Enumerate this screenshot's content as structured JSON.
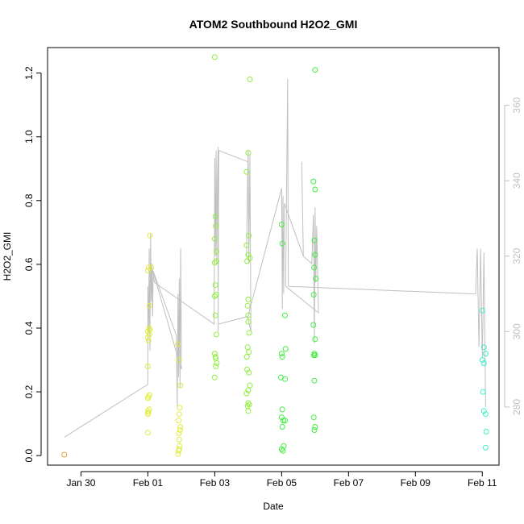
{
  "chart_data": {
    "type": "scatter",
    "title": "ATOM2 Southbound H2O2_GMI",
    "xlabel": "Date",
    "ylabel": "H2O2_GMI",
    "x_ticks": [
      {
        "day": 29.5,
        "label": "Jan 30"
      },
      {
        "day": 31.5,
        "label": "Feb 01"
      },
      {
        "day": 33.5,
        "label": "Feb 03"
      },
      {
        "day": 35.5,
        "label": "Feb 05"
      },
      {
        "day": 37.5,
        "label": "Feb 07"
      },
      {
        "day": 39.5,
        "label": "Feb 09"
      },
      {
        "day": 41.5,
        "label": "Feb 11"
      }
    ],
    "x_tick_note": "day = days after Jan 0 (Jan 30 00:00 = 29.5 in this scale offset by 0.5 so labels sit at midnight)",
    "xlim": [
      28.5,
      42.0
    ],
    "ylim": [
      -0.03,
      1.28
    ],
    "y_ticks": [
      "0.0",
      "0.2",
      "0.4",
      "0.6",
      "0.8",
      "1.0",
      "1.2"
    ],
    "y_tick_values": [
      0.0,
      0.2,
      0.4,
      0.6,
      0.8,
      1.0,
      1.2
    ],
    "y2_ticks": [
      "280",
      "300",
      "320",
      "340",
      "360"
    ],
    "y2_tick_values": [
      280,
      300,
      320,
      340,
      360
    ],
    "y2lim": [
      264.6,
      375.3
    ],
    "grid": false,
    "secondary_line_color": "#c0c0c0",
    "series": [
      {
        "color": "#e8a040",
        "points": [
          [
            29.0,
            0.003
          ]
        ]
      },
      {
        "color": "#e0ec3c",
        "points": [
          [
            31.5,
            0.072
          ],
          [
            31.5,
            0.13
          ],
          [
            31.5,
            0.14
          ],
          [
            31.52,
            0.135
          ],
          [
            31.54,
            0.145
          ],
          [
            31.5,
            0.18
          ],
          [
            31.52,
            0.185
          ],
          [
            31.55,
            0.19
          ],
          [
            31.5,
            0.28
          ],
          [
            31.52,
            0.36
          ],
          [
            31.5,
            0.37
          ],
          [
            31.55,
            0.38
          ],
          [
            31.5,
            0.39
          ],
          [
            31.54,
            0.4
          ],
          [
            31.56,
            0.395
          ],
          [
            31.55,
            0.47
          ],
          [
            31.5,
            0.58
          ],
          [
            31.52,
            0.59
          ],
          [
            31.56,
            0.69
          ],
          [
            31.6,
            0.59
          ],
          [
            32.4,
            0.005
          ],
          [
            32.42,
            0.015
          ],
          [
            32.44,
            0.02
          ],
          [
            32.45,
            0.03
          ],
          [
            32.44,
            0.05
          ],
          [
            32.43,
            0.07
          ],
          [
            32.46,
            0.08
          ],
          [
            32.47,
            0.09
          ],
          [
            32.42,
            0.11
          ],
          [
            32.44,
            0.13
          ],
          [
            32.45,
            0.15
          ],
          [
            32.47,
            0.22
          ],
          [
            32.4,
            0.35
          ],
          [
            32.43,
            0.3
          ]
        ]
      },
      {
        "color": "#90ee40",
        "points": [
          [
            33.5,
            1.25
          ],
          [
            33.52,
            0.75
          ],
          [
            33.5,
            0.68
          ],
          [
            33.53,
            0.72
          ],
          [
            33.55,
            0.64
          ],
          [
            33.5,
            0.605
          ],
          [
            33.55,
            0.61
          ],
          [
            33.52,
            0.535
          ],
          [
            33.5,
            0.5
          ],
          [
            33.54,
            0.505
          ],
          [
            33.52,
            0.44
          ],
          [
            33.55,
            0.38
          ],
          [
            33.5,
            0.32
          ],
          [
            33.52,
            0.31
          ],
          [
            33.53,
            0.305
          ],
          [
            33.56,
            0.29
          ],
          [
            33.53,
            0.28
          ],
          [
            33.5,
            0.245
          ],
          [
            34.45,
            0.89
          ],
          [
            34.5,
            0.95
          ],
          [
            34.52,
            0.69
          ],
          [
            34.45,
            0.66
          ],
          [
            34.5,
            0.63
          ],
          [
            34.55,
            0.62
          ],
          [
            34.47,
            0.61
          ],
          [
            34.5,
            0.49
          ],
          [
            34.48,
            0.47
          ],
          [
            34.5,
            0.44
          ],
          [
            34.5,
            0.42
          ],
          [
            34.53,
            0.385
          ],
          [
            34.48,
            0.34
          ],
          [
            34.52,
            0.325
          ],
          [
            34.46,
            0.31
          ],
          [
            34.47,
            0.27
          ],
          [
            34.52,
            0.26
          ],
          [
            34.55,
            0.22
          ],
          [
            34.5,
            0.205
          ],
          [
            34.45,
            0.195
          ],
          [
            34.5,
            0.165
          ],
          [
            34.53,
            0.16
          ],
          [
            34.48,
            0.155
          ],
          [
            34.5,
            0.14
          ],
          [
            34.55,
            1.18
          ]
        ]
      },
      {
        "color": "#40ee40",
        "points": [
          [
            35.5,
            0.725
          ],
          [
            35.52,
            0.665
          ],
          [
            35.5,
            0.32
          ],
          [
            35.52,
            0.31
          ],
          [
            35.48,
            0.245
          ],
          [
            35.52,
            0.145
          ],
          [
            35.5,
            0.12
          ],
          [
            35.55,
            0.11
          ],
          [
            35.52,
            0.09
          ],
          [
            35.5,
            0.02
          ],
          [
            35.54,
            0.015
          ],
          [
            35.56,
            0.03
          ],
          [
            35.6,
            0.44
          ],
          [
            35.62,
            0.335
          ],
          [
            35.6,
            0.24
          ],
          [
            35.6,
            0.11
          ],
          [
            36.45,
            0.86
          ],
          [
            36.5,
            0.835
          ],
          [
            36.48,
            0.675
          ],
          [
            36.5,
            0.63
          ],
          [
            36.47,
            0.59
          ],
          [
            36.52,
            0.555
          ],
          [
            36.46,
            0.505
          ],
          [
            36.45,
            0.41
          ],
          [
            36.5,
            0.365
          ],
          [
            36.48,
            0.32
          ],
          [
            36.46,
            0.315
          ],
          [
            36.5,
            0.315
          ],
          [
            36.48,
            0.235
          ],
          [
            36.46,
            0.12
          ],
          [
            36.5,
            0.09
          ],
          [
            36.48,
            0.08
          ],
          [
            36.5,
            1.21
          ]
        ]
      },
      {
        "color": "#40eec8",
        "points": [
          [
            41.5,
            0.455
          ],
          [
            41.55,
            0.34
          ],
          [
            41.5,
            0.3
          ],
          [
            41.6,
            0.32
          ],
          [
            41.55,
            0.29
          ],
          [
            41.52,
            0.2
          ],
          [
            41.55,
            0.14
          ],
          [
            41.6,
            0.13
          ],
          [
            41.62,
            0.075
          ],
          [
            41.6,
            0.025
          ]
        ]
      }
    ]
  }
}
